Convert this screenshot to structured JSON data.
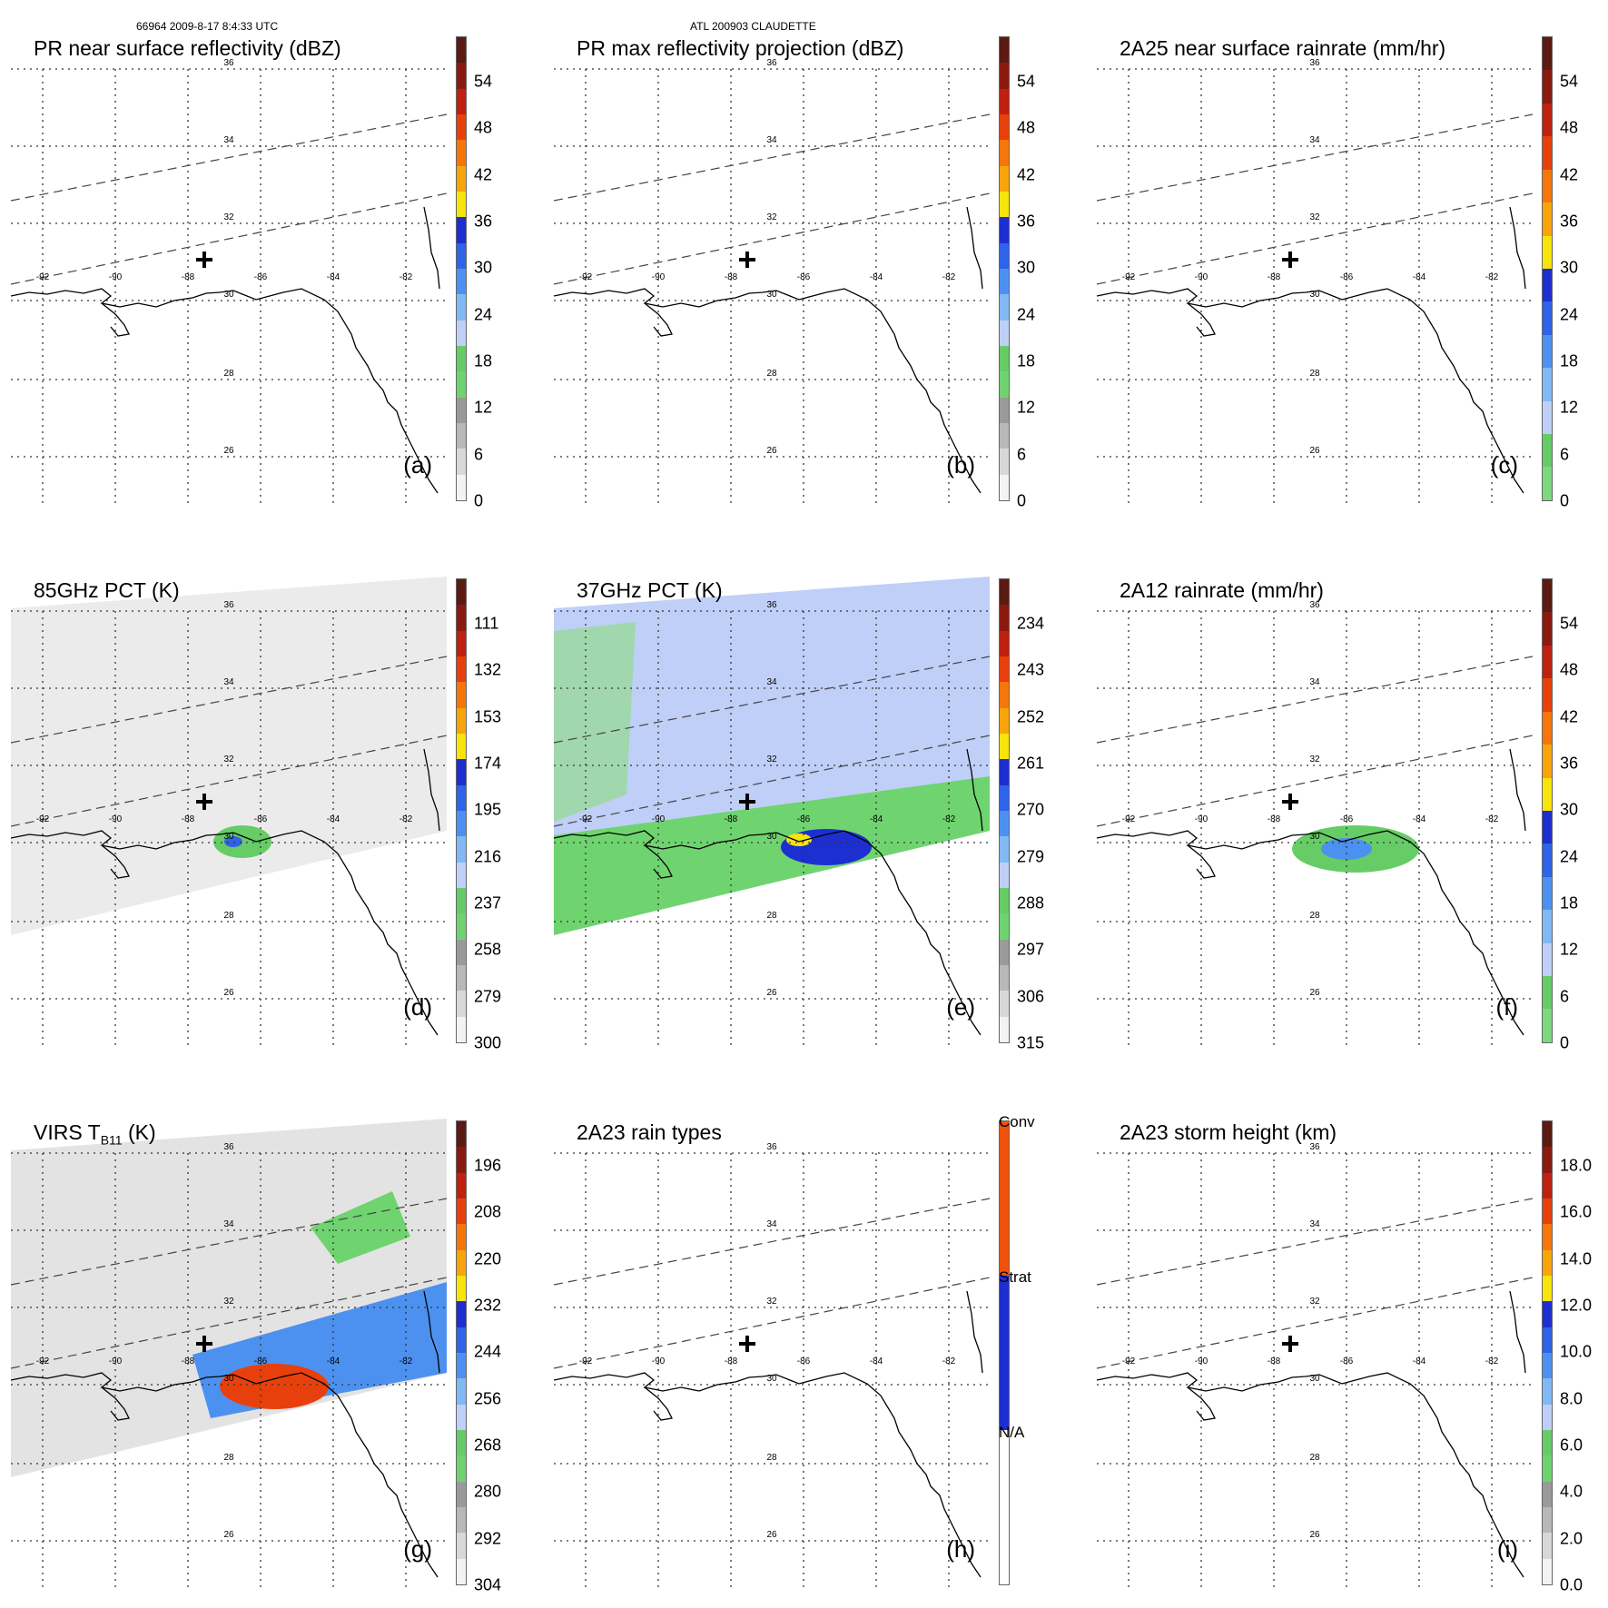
{
  "header": {
    "left": "66964 2009-8-17 8:4:33 UTC",
    "center": "ATL 200903 CLAUDETTE"
  },
  "latitudes": [
    "36",
    "34",
    "32",
    "30",
    "28",
    "26"
  ],
  "longitudes": [
    "-92",
    "-90",
    "-88",
    "-86",
    "-84",
    "-82"
  ],
  "panels": [
    {
      "title": "PR near surface reflectivity (dBZ)",
      "label": "(a)",
      "ticks": [
        "54",
        "48",
        "42",
        "36",
        "30",
        "24",
        "18",
        "12",
        "6",
        "0"
      ],
      "colors": [
        "#5b1a12",
        "#8a1a10",
        "#c0200f",
        "#e8400c",
        "#f5760a",
        "#f7a50b",
        "#f6e40a",
        "#1d2fd0",
        "#2f63e8",
        "#4d91f0",
        "#81b9f5",
        "#bfcff7",
        "#66cc66",
        "#6fd46f",
        "#9a9a9a",
        "#b8b8b8",
        "#d8d8d8",
        "#f3f3f3"
      ]
    },
    {
      "title": "PR max reflectivity projection (dBZ)",
      "label": "(b)",
      "ticks": [
        "54",
        "48",
        "42",
        "36",
        "30",
        "24",
        "18",
        "12",
        "6",
        "0"
      ],
      "colors": [
        "#5b1a12",
        "#8a1a10",
        "#c0200f",
        "#e8400c",
        "#f5760a",
        "#f7a50b",
        "#f6e40a",
        "#1d2fd0",
        "#2f63e8",
        "#4d91f0",
        "#81b9f5",
        "#bfcff7",
        "#66cc66",
        "#6fd46f",
        "#9a9a9a",
        "#b8b8b8",
        "#d8d8d8",
        "#f3f3f3"
      ]
    },
    {
      "title": "2A25 near surface rainrate (mm/hr)",
      "label": "(c)",
      "ticks": [
        "54",
        "48",
        "42",
        "36",
        "30",
        "24",
        "18",
        "12",
        "6",
        "0"
      ],
      "colors": [
        "#5b1a12",
        "#8a1a10",
        "#c0200f",
        "#e8400c",
        "#f5760a",
        "#f7a50b",
        "#f6e40a",
        "#1d2fd0",
        "#2f63e8",
        "#4d91f0",
        "#81b9f5",
        "#bfcff7",
        "#66cc66",
        "#7ed87e"
      ]
    },
    {
      "title": "85GHz PCT (K)",
      "label": "(d)",
      "ticks": [
        "111",
        "132",
        "153",
        "174",
        "195",
        "216",
        "237",
        "258",
        "279",
        "300"
      ],
      "colors": [
        "#5b1a12",
        "#8a1a10",
        "#c0200f",
        "#e8400c",
        "#f5760a",
        "#f7a50b",
        "#f6e40a",
        "#1d2fd0",
        "#2f63e8",
        "#4d91f0",
        "#81b9f5",
        "#bfcff7",
        "#66cc66",
        "#6fd46f",
        "#9a9a9a",
        "#b8b8b8",
        "#d8d8d8",
        "#f3f3f3"
      ]
    },
    {
      "title": "37GHz PCT (K)",
      "label": "(e)",
      "ticks": [
        "234",
        "243",
        "252",
        "261",
        "270",
        "279",
        "288",
        "297",
        "306",
        "315"
      ],
      "colors": [
        "#5b1a12",
        "#8a1a10",
        "#c0200f",
        "#e8400c",
        "#f5760a",
        "#f7a50b",
        "#f6e40a",
        "#1d2fd0",
        "#2f63e8",
        "#4d91f0",
        "#81b9f5",
        "#bfcff7",
        "#66cc66",
        "#6fd46f",
        "#9a9a9a",
        "#b8b8b8",
        "#d8d8d8",
        "#f3f3f3"
      ]
    },
    {
      "title": "2A12 rainrate (mm/hr)",
      "label": "(f)",
      "ticks": [
        "54",
        "48",
        "42",
        "36",
        "30",
        "24",
        "18",
        "12",
        "6",
        "0"
      ],
      "colors": [
        "#5b1a12",
        "#8a1a10",
        "#c0200f",
        "#e8400c",
        "#f5760a",
        "#f7a50b",
        "#f6e40a",
        "#1d2fd0",
        "#2f63e8",
        "#4d91f0",
        "#81b9f5",
        "#bfcff7",
        "#66cc66",
        "#7ed87e"
      ]
    },
    {
      "title_main": "VIRS T",
      "title_sub": "B11",
      "title_end": " (K)",
      "label": "(g)",
      "ticks": [
        "196",
        "208",
        "220",
        "232",
        "244",
        "256",
        "268",
        "280",
        "292",
        "304"
      ],
      "colors": [
        "#5b1a12",
        "#8a1a10",
        "#c0200f",
        "#e8400c",
        "#f5760a",
        "#f7a50b",
        "#f6e40a",
        "#1d2fd0",
        "#2f63e8",
        "#4d91f0",
        "#81b9f5",
        "#bfcff7",
        "#66cc66",
        "#6fd46f",
        "#9a9a9a",
        "#b8b8b8",
        "#d8d8d8",
        "#f3f3f3"
      ]
    },
    {
      "title": "2A23 rain types",
      "label": "(h)",
      "ticks": [
        "Conv",
        "Strat",
        "N/A"
      ],
      "colors": [
        "#f0520c",
        "#1d2fd0",
        "#ffffff"
      ]
    },
    {
      "title": "2A23 storm height (km)",
      "label": "(i)",
      "ticks": [
        "18.0",
        "16.0",
        "14.0",
        "12.0",
        "10.0",
        "8.0",
        "6.0",
        "4.0",
        "2.0",
        "0.0"
      ],
      "colors": [
        "#5b1a12",
        "#8a1a10",
        "#c0200f",
        "#e8400c",
        "#f5760a",
        "#f7a50b",
        "#f6e40a",
        "#1d2fd0",
        "#2f63e8",
        "#4d91f0",
        "#81b9f5",
        "#bfcff7",
        "#66cc66",
        "#6fd46f",
        "#9a9a9a",
        "#b8b8b8",
        "#d8d8d8",
        "#f3f3f3"
      ]
    }
  ]
}
